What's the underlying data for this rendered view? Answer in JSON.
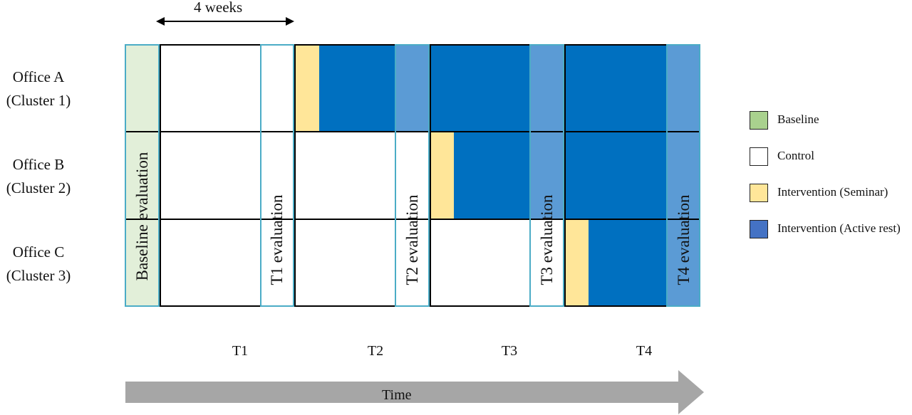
{
  "duration_label": "4 weeks",
  "rows": [
    {
      "name": "Office A",
      "cluster": "(Cluster 1)"
    },
    {
      "name": "Office B",
      "cluster": "(Cluster 2)"
    },
    {
      "name": "Office C",
      "cluster": "(Cluster 3)"
    }
  ],
  "evaluations": {
    "baseline": "Baseline evaluation",
    "t1": "T1 evaluation",
    "t2": "T2 evaluation",
    "t3": "T3 evaluation",
    "t4": "T4 evaluation"
  },
  "periods": [
    "T1",
    "T2",
    "T3",
    "T4"
  ],
  "time_label": "Time",
  "legend": [
    {
      "label": "Baseline",
      "color": "#a9d18e"
    },
    {
      "label": "Control",
      "color": "#ffffff"
    },
    {
      "label": "Intervention (Seminar)",
      "color": "#ffe699"
    },
    {
      "label": "Intervention (Active rest)",
      "color": "#4472c4"
    }
  ],
  "colors": {
    "baseline_fill": "#e2efd9",
    "seminar": "#ffe699",
    "active_rest": "#0070c0",
    "evaluation_overlay": "#5b9bd5",
    "evaluation_border": "#4bacc6",
    "arrow": "#a6a6a6"
  }
}
